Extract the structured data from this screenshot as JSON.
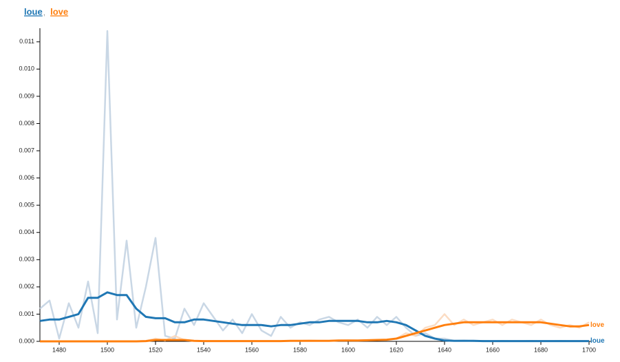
{
  "chart_data": {
    "type": "line",
    "legend_separator": ",",
    "x": [
      1472,
      1476,
      1480,
      1484,
      1488,
      1492,
      1496,
      1500,
      1504,
      1508,
      1512,
      1516,
      1520,
      1524,
      1528,
      1532,
      1536,
      1540,
      1544,
      1548,
      1552,
      1556,
      1560,
      1564,
      1568,
      1572,
      1576,
      1580,
      1584,
      1588,
      1592,
      1596,
      1600,
      1604,
      1608,
      1612,
      1616,
      1620,
      1624,
      1628,
      1632,
      1636,
      1640,
      1644,
      1648,
      1652,
      1656,
      1660,
      1664,
      1668,
      1672,
      1676,
      1680,
      1684,
      1688,
      1692,
      1696,
      1700
    ],
    "series": [
      {
        "name": "loue",
        "color": "#1f77b4",
        "values": [
          0.00075,
          0.0008,
          0.0008,
          0.0009,
          0.001,
          0.0016,
          0.0016,
          0.0018,
          0.0017,
          0.0017,
          0.0012,
          0.0009,
          0.00085,
          0.00085,
          0.0007,
          0.0007,
          0.0008,
          0.0008,
          0.00075,
          0.0007,
          0.00065,
          0.0006,
          0.0006,
          0.0006,
          0.00055,
          0.0006,
          0.0006,
          0.00065,
          0.0007,
          0.0007,
          0.00075,
          0.00075,
          0.00075,
          0.00075,
          0.0007,
          0.0007,
          0.00075,
          0.0007,
          0.0006,
          0.0004,
          0.0002,
          0.0001,
          3e-05,
          2e-05,
          2e-05,
          2e-05,
          1e-05,
          1e-05,
          1e-05,
          1e-05,
          1e-05,
          1e-05,
          1e-05,
          1e-05,
          1e-05,
          1e-05,
          1e-05,
          1e-05
        ]
      },
      {
        "name": "love",
        "color": "#ff7f0e",
        "values": [
          0,
          0,
          0,
          0,
          0,
          0,
          0,
          0,
          0,
          0,
          0,
          1e-05,
          5e-05,
          5e-05,
          5e-05,
          5e-05,
          2e-05,
          1e-05,
          1e-05,
          1e-05,
          1e-05,
          1e-05,
          1e-05,
          1e-05,
          1e-05,
          1e-05,
          2e-05,
          2e-05,
          2e-05,
          2e-05,
          2e-05,
          3e-05,
          3e-05,
          3e-05,
          4e-05,
          5e-05,
          6e-05,
          0.0001,
          0.0002,
          0.0003,
          0.0004,
          0.0005,
          0.0006,
          0.00065,
          0.0007,
          0.0007,
          0.0007,
          0.0007,
          0.0007,
          0.0007,
          0.0007,
          0.0007,
          0.0007,
          0.00065,
          0.0006,
          0.00055,
          0.00055,
          0.0006
        ]
      }
    ],
    "raw_series": [
      {
        "color": "#c3d3e2",
        "values": [
          0.0012,
          0.0015,
          0.0001,
          0.0014,
          0.0005,
          0.0022,
          0.0003,
          0.0114,
          0.0008,
          0.0037,
          0.0005,
          0.002,
          0.0038,
          0.0002,
          0.0001,
          0.0012,
          0.0006,
          0.0014,
          0.0009,
          0.0004,
          0.0008,
          0.0003,
          0.001,
          0.0004,
          0.0002,
          0.0009,
          0.0005,
          0.0007,
          0.0006,
          0.0008,
          0.0009,
          0.0007,
          0.0006,
          0.0008,
          0.0005,
          0.0009,
          0.0006,
          0.0009,
          0.0005,
          0.0002,
          0.0003,
          0.0001,
          0.0001,
          2e-05,
          3e-05,
          1e-05,
          2e-05,
          1e-05,
          2e-05,
          1e-05,
          1e-05,
          2e-05,
          1e-05,
          1e-05,
          2e-05,
          1e-05,
          1e-05,
          1e-05
        ]
      },
      {
        "color": "#fbd8bd",
        "values": [
          0,
          0,
          0,
          0,
          0,
          0,
          0,
          0,
          0,
          0,
          0,
          2e-05,
          0.0001,
          3e-05,
          0.0002,
          5e-05,
          2e-05,
          1e-05,
          1e-05,
          1e-05,
          1e-05,
          1e-05,
          1e-05,
          1e-05,
          1e-05,
          1e-05,
          2e-05,
          2e-05,
          3e-05,
          2e-05,
          2e-05,
          3e-05,
          4e-05,
          3e-05,
          4e-05,
          6e-05,
          5e-05,
          0.0001,
          0.0003,
          0.0002,
          0.0005,
          0.0006,
          0.001,
          0.0006,
          0.0008,
          0.0006,
          0.0007,
          0.0008,
          0.0006,
          0.0008,
          0.0007,
          0.0006,
          0.0008,
          0.0006,
          0.0005,
          0.0006,
          0.0005,
          0.0007
        ]
      }
    ],
    "xlim": [
      1472,
      1700
    ],
    "ylim": [
      0,
      0.0115
    ],
    "xticks": [
      1480,
      1500,
      1520,
      1540,
      1560,
      1580,
      1600,
      1620,
      1640,
      1660,
      1680,
      1700
    ],
    "yticks": [
      {
        "value": 0,
        "label": "0.000"
      },
      {
        "value": 0.001,
        "label": "0.001"
      },
      {
        "value": 0.002,
        "label": "0.002"
      },
      {
        "value": 0.003,
        "label": "0.003"
      },
      {
        "value": 0.004,
        "label": "0.004"
      },
      {
        "value": 0.005,
        "label": "0.005"
      },
      {
        "value": 0.006,
        "label": "0.006"
      },
      {
        "value": 0.007,
        "label": "0.007"
      },
      {
        "value": 0.008,
        "label": "0.008"
      },
      {
        "value": 0.009,
        "label": "0.009"
      },
      {
        "value": 0.01,
        "label": "0.010"
      },
      {
        "value": 0.011,
        "label": "0.011"
      }
    ]
  }
}
